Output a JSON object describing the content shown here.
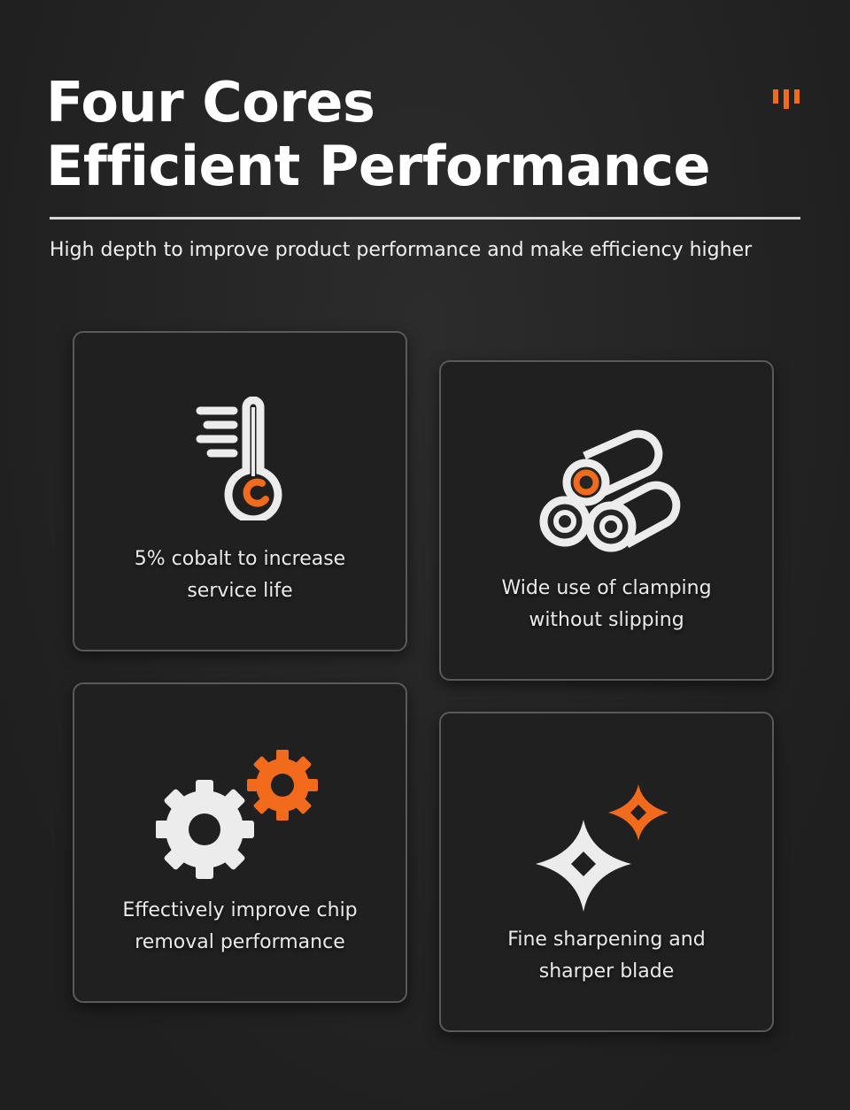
{
  "header": {
    "title_line1": "Four Cores",
    "title_line2": "Efficient Performance",
    "subtitle": "High depth to improve product performance and make efficiency higher"
  },
  "colors": {
    "accent": "#f26a1b",
    "background": "#252525",
    "icon": "#ececec"
  },
  "features": [
    {
      "icon": "thermometer-icon",
      "text": "5% cobalt to increase service life"
    },
    {
      "icon": "pipes-icon",
      "text": "Wide use of clamping without slipping"
    },
    {
      "icon": "gears-icon",
      "text": "Effectively improve chip removal performance"
    },
    {
      "icon": "sparkle-icon",
      "text": "Fine sharpening and sharper blade"
    }
  ]
}
